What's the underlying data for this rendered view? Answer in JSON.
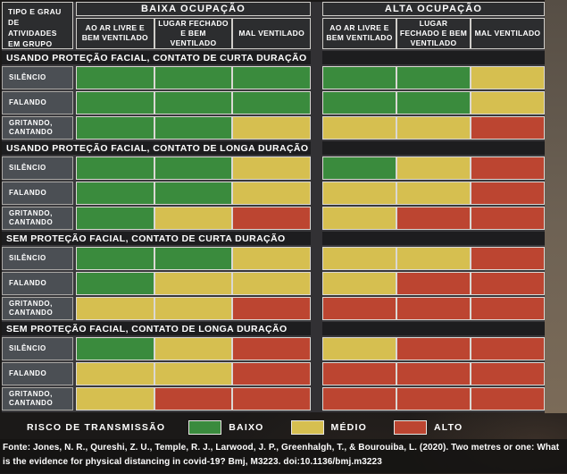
{
  "chart_data": {
    "type": "heatmap",
    "corner_label": "TIPO E GRAU DE ATIVIDADES EM GRUPO",
    "col_groups": [
      {
        "label": "BAIXA OCUPAÇÃO",
        "columns": [
          "AO AR LIVRE E BEM VENTILADO",
          "LUGAR FECHADO E BEM VENTILADO",
          "MAL VENTILADO"
        ]
      },
      {
        "label": "ALTA OCUPAÇÃO",
        "columns": [
          "AO AR LIVRE E BEM VENTILADO",
          "LUGAR FECHADO E BEM VENTILADO",
          "MAL VENTILADO"
        ]
      }
    ],
    "risk_levels": [
      "baixo",
      "medio",
      "alto"
    ],
    "colors": {
      "baixo": "#3a8b3d",
      "medio": "#d6bf50",
      "alto": "#bc4531"
    },
    "sections": [
      {
        "title": "USANDO PROTEÇÃO FACIAL, CONTATO DE CURTA DURAÇÃO",
        "rows": [
          {
            "label": "SILÊNCIO",
            "values": [
              "baixo",
              "baixo",
              "baixo",
              "baixo",
              "baixo",
              "medio"
            ]
          },
          {
            "label": "FALANDO",
            "values": [
              "baixo",
              "baixo",
              "baixo",
              "baixo",
              "baixo",
              "medio"
            ]
          },
          {
            "label": "GRITANDO, CANTANDO",
            "values": [
              "baixo",
              "baixo",
              "medio",
              "medio",
              "medio",
              "alto"
            ]
          }
        ]
      },
      {
        "title": "USANDO PROTEÇÃO FACIAL, CONTATO DE LONGA DURAÇÃO",
        "rows": [
          {
            "label": "SILÊNCIO",
            "values": [
              "baixo",
              "baixo",
              "medio",
              "baixo",
              "medio",
              "alto"
            ]
          },
          {
            "label": "FALANDO",
            "values": [
              "baixo",
              "baixo",
              "medio",
              "medio",
              "medio",
              "alto"
            ]
          },
          {
            "label": "GRITANDO, CANTANDO",
            "values": [
              "baixo",
              "medio",
              "alto",
              "medio",
              "alto",
              "alto"
            ]
          }
        ]
      },
      {
        "title": "SEM PROTEÇÃO FACIAL, CONTATO DE CURTA DURAÇÃO",
        "rows": [
          {
            "label": "SILÊNCIO",
            "values": [
              "baixo",
              "baixo",
              "medio",
              "medio",
              "medio",
              "alto"
            ]
          },
          {
            "label": "FALANDO",
            "values": [
              "baixo",
              "medio",
              "medio",
              "medio",
              "alto",
              "alto"
            ]
          },
          {
            "label": "GRITANDO, CANTANDO",
            "values": [
              "medio",
              "medio",
              "alto",
              "alto",
              "alto",
              "alto"
            ]
          }
        ]
      },
      {
        "title": "SEM PROTEÇÃO FACIAL, CONTATO DE LONGA DURAÇÃO",
        "rows": [
          {
            "label": "SILÊNCIO",
            "values": [
              "baixo",
              "medio",
              "alto",
              "medio",
              "alto",
              "alto"
            ]
          },
          {
            "label": "FALANDO",
            "values": [
              "medio",
              "medio",
              "alto",
              "alto",
              "alto",
              "alto"
            ]
          },
          {
            "label": "GRITANDO, CANTANDO",
            "values": [
              "medio",
              "alto",
              "alto",
              "alto",
              "alto",
              "alto"
            ]
          }
        ]
      }
    ]
  },
  "legend": {
    "title": "RISCO DE TRANSMISSÃO",
    "items": [
      {
        "label": "BAIXO",
        "level": "baixo"
      },
      {
        "label": "MÉDIO",
        "level": "medio"
      },
      {
        "label": "ALTO",
        "level": "alto"
      }
    ]
  },
  "footer": {
    "source": "Fonte: Jones, N. R., Qureshi, Z. U., Temple, R. J., Larwood, J. P., Greenhalgh, T., & Bourouiba, L. (2020). Two metres or one: What is the evidence for physical distancing in covid-19? Bmj, M3223. doi:10.1136/bmj.m3223"
  }
}
